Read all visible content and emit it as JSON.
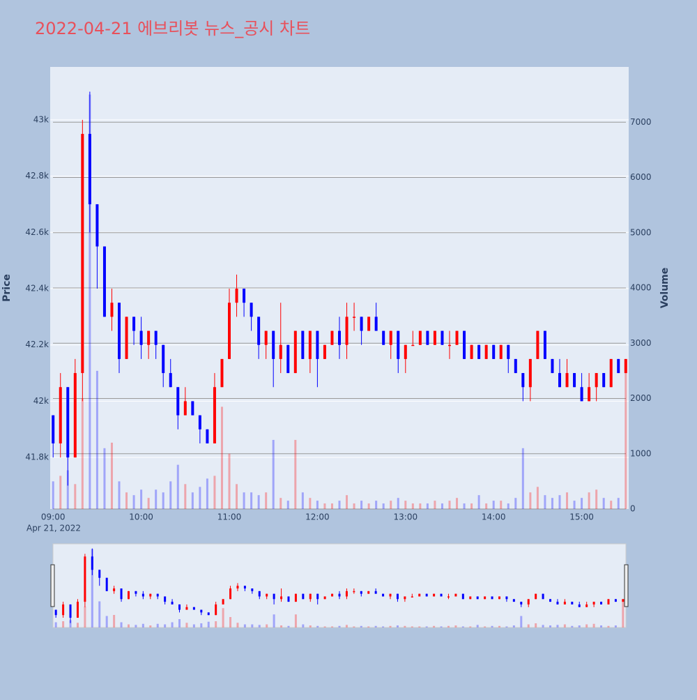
{
  "chart_data": {
    "type": "candlestick",
    "title": "2022-04-21 에브리봇 뉴스_공시 차트",
    "y_label": "Price",
    "y2_label": "Volume",
    "x_date_label": "Apr 21, 2022",
    "increasing_color": "#ff0000",
    "decreasing_color": "#0000ff",
    "xlim": [
      "08:58",
      "15:32"
    ],
    "xticks": [
      "09:00",
      "10:00",
      "11:00",
      "12:00",
      "13:00",
      "14:00",
      "15:00"
    ],
    "ylim": [
      41617,
      43188
    ],
    "yticks": [
      {
        "value": 41800,
        "label": "41.8k"
      },
      {
        "value": 42000,
        "label": "42k"
      },
      {
        "value": 42200,
        "label": "42.2k"
      },
      {
        "value": 42400,
        "label": "42.4k"
      },
      {
        "value": 42600,
        "label": "42.6k"
      },
      {
        "value": 42800,
        "label": "42.8k"
      },
      {
        "value": 43000,
        "label": "43k"
      }
    ],
    "y2lim": [
      0,
      8000
    ],
    "y2ticks": [
      0,
      1000,
      2000,
      3000,
      4000,
      5000,
      6000,
      7000
    ],
    "rangeslider": true,
    "x": [
      "09:00",
      "09:05",
      "09:10",
      "09:15",
      "09:20",
      "09:25",
      "09:30",
      "09:35",
      "09:40",
      "09:45",
      "09:50",
      "09:55",
      "10:00",
      "10:05",
      "10:10",
      "10:15",
      "10:20",
      "10:25",
      "10:30",
      "10:35",
      "10:40",
      "10:45",
      "10:50",
      "10:55",
      "11:00",
      "11:05",
      "11:10",
      "11:15",
      "11:20",
      "11:25",
      "11:30",
      "11:35",
      "11:40",
      "11:45",
      "11:50",
      "11:55",
      "12:00",
      "12:05",
      "12:10",
      "12:15",
      "12:20",
      "12:25",
      "12:30",
      "12:35",
      "12:40",
      "12:45",
      "12:50",
      "12:55",
      "13:00",
      "13:05",
      "13:10",
      "13:15",
      "13:20",
      "13:25",
      "13:30",
      "13:35",
      "13:40",
      "13:45",
      "13:50",
      "13:55",
      "14:00",
      "14:05",
      "14:10",
      "14:15",
      "14:20",
      "14:25",
      "14:30",
      "14:35",
      "14:40",
      "14:45",
      "14:50",
      "14:55",
      "15:00",
      "15:05",
      "15:10",
      "15:15",
      "15:20",
      "15:25",
      "15:30"
    ],
    "open": [
      41950,
      41850,
      42050,
      41800,
      42100,
      42950,
      42700,
      42550,
      42300,
      42350,
      42150,
      42300,
      42250,
      42200,
      42250,
      42200,
      42100,
      42050,
      41950,
      42000,
      41950,
      41900,
      41850,
      42050,
      42150,
      42350,
      42400,
      42350,
      42300,
      42200,
      42250,
      42150,
      42200,
      42100,
      42250,
      42150,
      42250,
      42150,
      42200,
      42250,
      42200,
      42300,
      42300,
      42250,
      42300,
      42250,
      42200,
      42250,
      42150,
      42200,
      42200,
      42250,
      42200,
      42250,
      42200,
      42200,
      42250,
      42150,
      42200,
      42150,
      42200,
      42150,
      42200,
      42150,
      42100,
      42050,
      42150,
      42250,
      42150,
      42100,
      42050,
      42100,
      42050,
      42000,
      42050,
      42100,
      42050,
      42150,
      42100
    ],
    "high": [
      41950,
      42100,
      42050,
      42150,
      43000,
      43100,
      42700,
      42550,
      42400,
      42350,
      42300,
      42300,
      42300,
      42250,
      42250,
      42200,
      42150,
      42050,
      42050,
      42000,
      41950,
      41900,
      42100,
      42150,
      42400,
      42450,
      42400,
      42350,
      42300,
      42250,
      42250,
      42350,
      42200,
      42250,
      42250,
      42250,
      42250,
      42200,
      42250,
      42300,
      42350,
      42350,
      42300,
      42300,
      42350,
      42250,
      42250,
      42250,
      42200,
      42250,
      42250,
      42250,
      42250,
      42250,
      42250,
      42250,
      42250,
      42200,
      42200,
      42200,
      42200,
      42200,
      42200,
      42150,
      42100,
      42150,
      42250,
      42250,
      42150,
      42150,
      42150,
      42100,
      42100,
      42100,
      42100,
      42100,
      42150,
      42150,
      42150
    ],
    "low": [
      41800,
      41800,
      41700,
      41800,
      42000,
      42600,
      42400,
      42300,
      42250,
      42100,
      42150,
      42200,
      42150,
      42150,
      42150,
      42050,
      42050,
      41900,
      41950,
      41950,
      41850,
      41850,
      41850,
      42050,
      42150,
      42300,
      42300,
      42250,
      42150,
      42150,
      42050,
      42100,
      42100,
      42100,
      42150,
      42100,
      42050,
      42150,
      42200,
      42150,
      42150,
      42250,
      42200,
      42250,
      42250,
      42200,
      42150,
      42100,
      42100,
      42200,
      42200,
      42200,
      42200,
      42200,
      42150,
      42200,
      42150,
      42150,
      42150,
      42150,
      42150,
      42150,
      42100,
      42100,
      42000,
      42000,
      42150,
      42150,
      42100,
      42050,
      42050,
      42050,
      42000,
      42000,
      42000,
      42050,
      42050,
      42100,
      42100
    ],
    "close": [
      41850,
      42050,
      41800,
      42100,
      42950,
      42700,
      42550,
      42300,
      42350,
      42150,
      42300,
      42250,
      42200,
      42250,
      42200,
      42100,
      42050,
      41950,
      42000,
      41950,
      41900,
      41850,
      42050,
      42150,
      42350,
      42400,
      42350,
      42300,
      42200,
      42250,
      42150,
      42200,
      42100,
      42250,
      42150,
      42250,
      42150,
      42200,
      42250,
      42200,
      42300,
      42300,
      42250,
      42300,
      42250,
      42200,
      42250,
      42150,
      42200,
      42200,
      42250,
      42200,
      42250,
      42200,
      42200,
      42250,
      42150,
      42200,
      42150,
      42200,
      42150,
      42200,
      42150,
      42100,
      42050,
      42150,
      42250,
      42150,
      42100,
      42050,
      42100,
      42050,
      42000,
      42050,
      42100,
      42050,
      42150,
      42100,
      42150
    ],
    "volume": [
      500,
      600,
      700,
      450,
      2000,
      7500,
      2500,
      1100,
      1200,
      500,
      300,
      250,
      350,
      200,
      350,
      300,
      500,
      800,
      450,
      300,
      400,
      550,
      600,
      1850,
      1000,
      450,
      300,
      300,
      250,
      300,
      1250,
      200,
      150,
      1250,
      300,
      200,
      150,
      100,
      100,
      150,
      250,
      100,
      150,
      100,
      150,
      100,
      150,
      200,
      150,
      100,
      100,
      100,
      150,
      100,
      150,
      200,
      100,
      100,
      250,
      100,
      150,
      150,
      100,
      200,
      1100,
      300,
      400,
      250,
      200,
      250,
      300,
      150,
      200,
      300,
      350,
      200,
      150,
      200,
      2700
    ]
  }
}
